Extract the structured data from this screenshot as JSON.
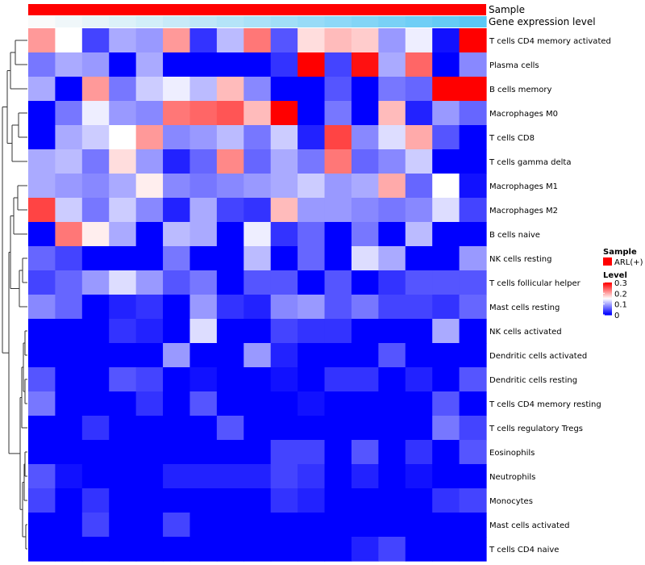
{
  "chart_data": {
    "type": "heatmap",
    "title": "",
    "annotations": [
      {
        "name": "Sample",
        "colors": "#ff0000"
      },
      {
        "name": "Gene expression level",
        "colors": "gradient #fafafa to #5bc8f5"
      }
    ],
    "rows": [
      "T cells CD4 memory activated",
      "Plasma cells",
      "B cells memory",
      "Macrophages M0",
      "T cells CD8",
      "T cells gamma delta",
      "Macrophages M1",
      "Macrophages M2",
      "B cells naive",
      "NK cells resting",
      "T cells follicular helper",
      "Mast cells resting",
      "NK cells activated",
      "Dendritic cells activated",
      "Dendritic cells resting",
      "T cells CD4 memory resting",
      "T cells regulatory  Tregs",
      "Eosinophils",
      "Neutrophils",
      "Monocytes",
      "Mast cells activated",
      "T cells CD4 naive"
    ],
    "values": [
      [
        0.21,
        0.15,
        0.04,
        0.1,
        0.09,
        0.21,
        0.03,
        0.11,
        0.23,
        0.05,
        0.17,
        0.19,
        0.18,
        0.09,
        0.14,
        0.01,
        0.3
      ],
      [
        0.07,
        0.1,
        0.09,
        0.0,
        0.1,
        0.0,
        0.0,
        0.0,
        0.0,
        0.03,
        0.3,
        0.04,
        0.29,
        0.1,
        0.24,
        0.0,
        0.08
      ],
      [
        0.1,
        0.0,
        0.21,
        0.07,
        0.12,
        0.14,
        0.11,
        0.19,
        0.08,
        0.0,
        0.0,
        0.05,
        0.0,
        0.07,
        0.06,
        0.3,
        0.3
      ],
      [
        0.0,
        0.07,
        0.14,
        0.09,
        0.08,
        0.23,
        0.24,
        0.25,
        0.19,
        0.3,
        0.0,
        0.07,
        0.0,
        0.19,
        0.02,
        0.09,
        0.06
      ],
      [
        0.0,
        0.1,
        0.12,
        0.15,
        0.21,
        0.08,
        0.09,
        0.11,
        0.07,
        0.12,
        0.02,
        0.26,
        0.08,
        0.13,
        0.2,
        0.05,
        0.0
      ],
      [
        0.1,
        0.11,
        0.07,
        0.17,
        0.09,
        0.02,
        0.06,
        0.22,
        0.06,
        0.1,
        0.07,
        0.23,
        0.06,
        0.08,
        0.12,
        0.0,
        0.0
      ],
      [
        0.1,
        0.09,
        0.08,
        0.1,
        0.16,
        0.08,
        0.07,
        0.08,
        0.09,
        0.1,
        0.12,
        0.09,
        0.1,
        0.2,
        0.06,
        0.15,
        0.01
      ],
      [
        0.26,
        0.12,
        0.07,
        0.12,
        0.08,
        0.02,
        0.1,
        0.04,
        0.03,
        0.19,
        0.09,
        0.09,
        0.08,
        0.07,
        0.08,
        0.13,
        0.04
      ],
      [
        0.0,
        0.23,
        0.16,
        0.1,
        0.0,
        0.11,
        0.1,
        0.0,
        0.14,
        0.03,
        0.06,
        0.0,
        0.07,
        0.0,
        0.11,
        0.0,
        0.0
      ],
      [
        0.06,
        0.04,
        0.0,
        0.0,
        0.0,
        0.07,
        0.0,
        0.0,
        0.11,
        0.0,
        0.06,
        0.0,
        0.13,
        0.1,
        0.0,
        0.0,
        0.09
      ],
      [
        0.04,
        0.06,
        0.09,
        0.13,
        0.09,
        0.05,
        0.07,
        0.0,
        0.05,
        0.05,
        0.0,
        0.05,
        0.0,
        0.03,
        0.05,
        0.05,
        0.05
      ],
      [
        0.08,
        0.06,
        0.0,
        0.02,
        0.03,
        0.0,
        0.09,
        0.03,
        0.02,
        0.08,
        0.09,
        0.05,
        0.07,
        0.04,
        0.04,
        0.03,
        0.06
      ],
      [
        0.0,
        0.0,
        0.0,
        0.03,
        0.02,
        0.0,
        0.13,
        0.0,
        0.0,
        0.04,
        0.03,
        0.03,
        0.0,
        0.0,
        0.0,
        0.1,
        0.0
      ],
      [
        0.0,
        0.0,
        0.0,
        0.0,
        0.0,
        0.09,
        0.0,
        0.0,
        0.09,
        0.02,
        0.0,
        0.0,
        0.0,
        0.05,
        0.0,
        0.0,
        0.0
      ],
      [
        0.05,
        0.0,
        0.0,
        0.05,
        0.04,
        0.0,
        0.01,
        0.0,
        0.0,
        0.01,
        0.0,
        0.03,
        0.03,
        0.0,
        0.02,
        0.0,
        0.05
      ],
      [
        0.07,
        0.0,
        0.0,
        0.0,
        0.03,
        0.0,
        0.05,
        0.0,
        0.0,
        0.0,
        0.01,
        0.0,
        0.0,
        0.0,
        0.0,
        0.05,
        0.0
      ],
      [
        0.0,
        0.0,
        0.03,
        0.0,
        0.0,
        0.0,
        0.0,
        0.05,
        0.0,
        0.0,
        0.0,
        0.0,
        0.0,
        0.0,
        0.0,
        0.07,
        0.04
      ],
      [
        0.0,
        0.0,
        0.0,
        0.0,
        0.0,
        0.0,
        0.0,
        0.0,
        0.0,
        0.04,
        0.04,
        0.0,
        0.05,
        0.0,
        0.03,
        0.0,
        0.05
      ],
      [
        0.05,
        0.01,
        0.0,
        0.0,
        0.0,
        0.02,
        0.02,
        0.02,
        0.02,
        0.04,
        0.03,
        0.0,
        0.02,
        0.0,
        0.01,
        0.0,
        0.0
      ],
      [
        0.04,
        0.0,
        0.03,
        0.0,
        0.0,
        0.0,
        0.0,
        0.0,
        0.0,
        0.03,
        0.02,
        0.0,
        0.0,
        0.0,
        0.0,
        0.03,
        0.04
      ],
      [
        0.0,
        0.0,
        0.04,
        0.0,
        0.0,
        0.04,
        0.0,
        0.0,
        0.0,
        0.0,
        0.0,
        0.0,
        0.0,
        0.0,
        0.0,
        0.0,
        0.0
      ],
      [
        0.0,
        0.0,
        0.0,
        0.0,
        0.0,
        0.0,
        0.0,
        0.0,
        0.0,
        0.0,
        0.0,
        0.0,
        0.02,
        0.04,
        0.0,
        0.0,
        0.0
      ]
    ],
    "color_scale": {
      "min": 0,
      "mid": 0.15,
      "max": 0.3,
      "low": "#0000ff",
      "midcolor": "#ffffff",
      "high": "#ff0000"
    },
    "legend": {
      "sample_title": "Sample",
      "sample_entry": "ARL(+)",
      "sample_color": "#ff0000",
      "level_title": "Level",
      "level_ticks": [
        {
          "value": 0.3,
          "label": "0.3"
        },
        {
          "value": 0.2,
          "label": "0.2"
        },
        {
          "value": 0.1,
          "label": "0.1"
        },
        {
          "value": 0,
          "label": "0"
        }
      ],
      "placement": "right"
    },
    "row_dendrogram": true,
    "column_dendrogram": false
  }
}
